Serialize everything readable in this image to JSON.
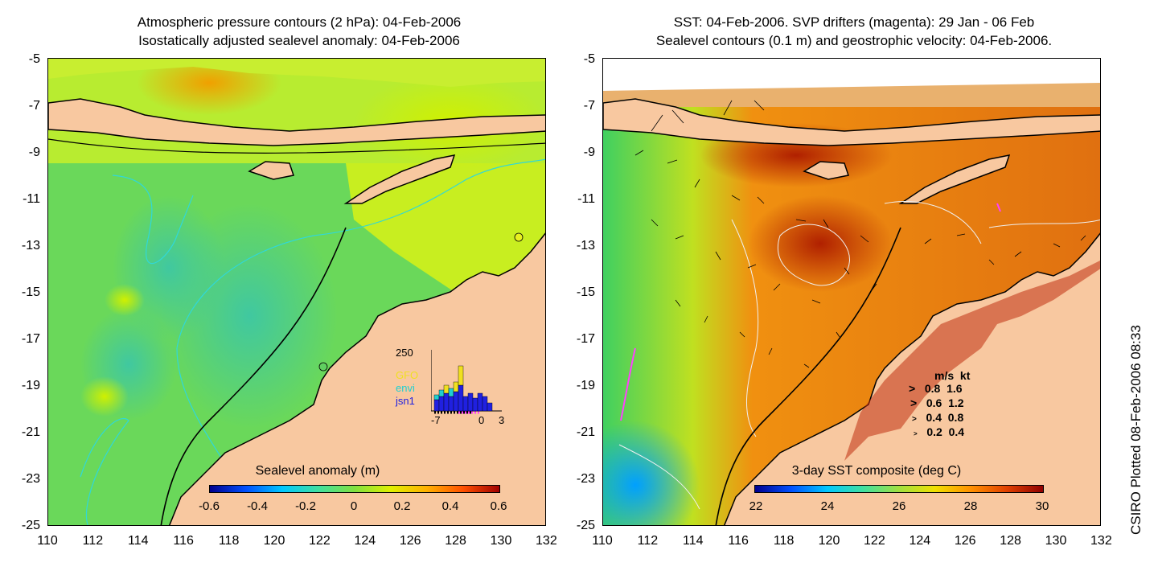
{
  "left_panel": {
    "title_line1": "Atmospheric pressure contours (2 hPa): 04-Feb-2006",
    "title_line2": "Isostatically adjusted sealevel anomaly: 04-Feb-2006",
    "colorbar_title": "Sealevel anomaly (m)",
    "colorbar_ticks": [
      "-0.6",
      "-0.4",
      "-0.2",
      "0",
      "0.2",
      "0.4",
      "0.6"
    ],
    "inset": {
      "y_top": "250",
      "x_ticks": [
        "-7",
        "0",
        "3"
      ],
      "missions": [
        {
          "name": "GFO",
          "color": "#f0e020"
        },
        {
          "name": "envi",
          "color": "#20d0d0"
        },
        {
          "name": "jsn1",
          "color": "#2020e0"
        }
      ]
    }
  },
  "right_panel": {
    "title_line1": "SST: 04-Feb-2006. SVP drifters (magenta): 29 Jan - 06 Feb",
    "title_line2": "Sealevel contours (0.1 m) and geostrophic velocity: 04-Feb-2006.",
    "colorbar_title": "3-day SST composite (deg C)",
    "colorbar_ticks": [
      "22",
      "24",
      "26",
      "28",
      "30"
    ],
    "velocity_legend": {
      "header": [
        "m/s",
        "kt"
      ],
      "rows": [
        [
          "0.8",
          "1.6"
        ],
        [
          "0.6",
          "1.2"
        ],
        [
          "0.4",
          "0.8"
        ],
        [
          "0.2",
          "0.4"
        ]
      ]
    }
  },
  "axes": {
    "y_ticks": [
      "-5",
      "-7",
      "-9",
      "-11",
      "-13",
      "-15",
      "-17",
      "-19",
      "-21",
      "-23",
      "-25"
    ],
    "x_ticks": [
      "110",
      "112",
      "114",
      "116",
      "118",
      "120",
      "122",
      "124",
      "126",
      "128",
      "130",
      "132"
    ]
  },
  "credit": "CSIRO Plotted 08-Feb-2006 08:33",
  "colors": {
    "land": "#f8c8a0",
    "sla_cmap": [
      "#00008f",
      "#0050ff",
      "#00c8ff",
      "#40e0a0",
      "#80e040",
      "#e0f000",
      "#ffb000",
      "#ff5000",
      "#a00000"
    ],
    "sst_cmap": [
      "#00008f",
      "#0050ff",
      "#00c8ff",
      "#40e0a0",
      "#a0e040",
      "#f0e000",
      "#ff9000",
      "#e04000",
      "#900000"
    ]
  }
}
